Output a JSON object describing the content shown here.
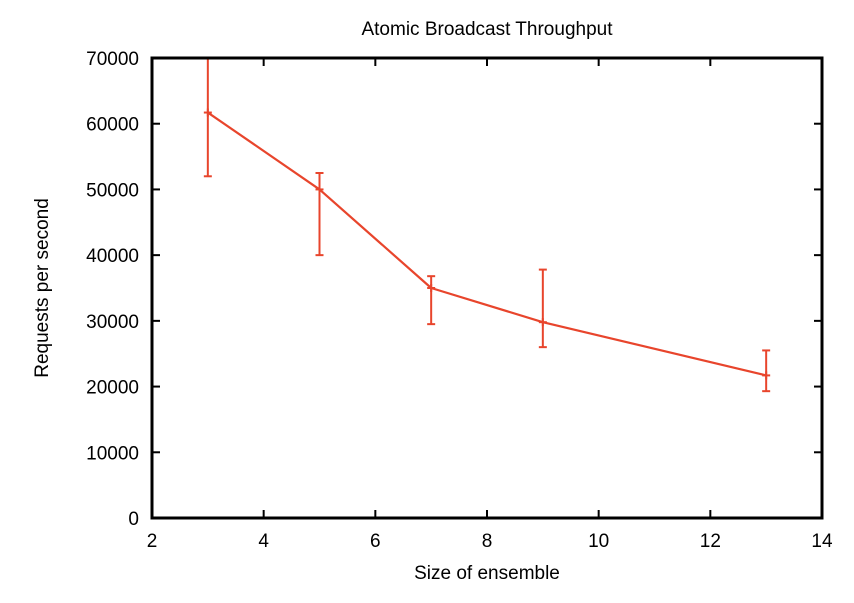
{
  "chart_data": {
    "type": "line",
    "title": "Atomic Broadcast Throughput",
    "xlabel": "Size of ensemble",
    "ylabel": "Requests per second",
    "xlim": [
      2,
      14
    ],
    "ylim": [
      0,
      70000
    ],
    "x_ticks": [
      "2",
      "4",
      "6",
      "8",
      "10",
      "12",
      "14"
    ],
    "y_ticks": [
      "0",
      "10000",
      "20000",
      "30000",
      "40000",
      "50000",
      "60000",
      "70000"
    ],
    "grid": false,
    "series_color": "#e8452c",
    "series": [
      {
        "x": [
          3,
          5,
          7,
          9,
          13
        ],
        "y": [
          61700,
          50000,
          35000,
          29800,
          21700
        ],
        "err_low": [
          52000,
          40000,
          29500,
          26000,
          19300
        ],
        "err_high": [
          70000,
          52500,
          36800,
          37800,
          25500
        ]
      }
    ]
  }
}
